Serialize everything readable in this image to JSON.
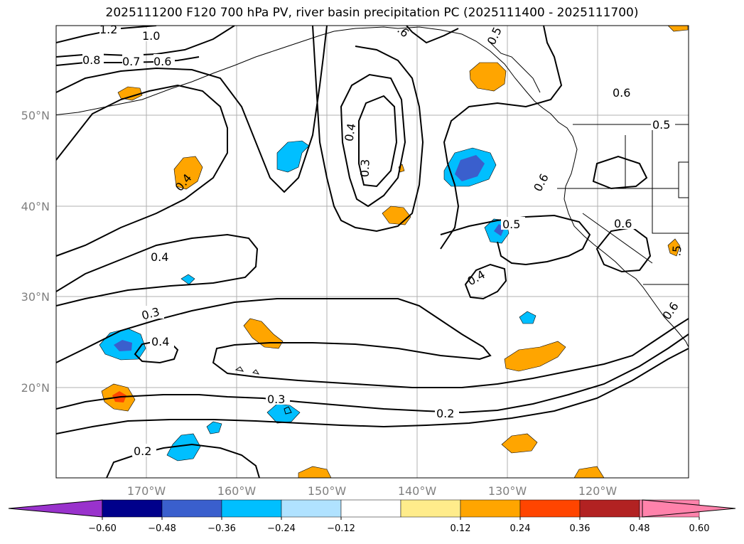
{
  "title": "2025111200 F120 700 hPa PV, river basin precipitation PC (2025111400 - 2025111700)",
  "lat_labels": [
    "50°N",
    "40°N",
    "30°N",
    "20°N"
  ],
  "lon_labels": [
    "170°W",
    "160°W",
    "150°W",
    "140°W",
    "130°W",
    "120°W"
  ],
  "contour_labels": [
    "1.2",
    "1.0",
    "0.8",
    "0.7",
    "0.6",
    "0.6",
    "0.5",
    "0.5",
    "0.6",
    "0.6",
    "0.5",
    "0.4",
    "0.3",
    "0.4",
    "0.4",
    "0.4",
    "0.3",
    "0.4",
    "0.3",
    "0.2",
    "0.2",
    "0.6",
    ".5",
    ".6"
  ],
  "colorbar": {
    "ticks": [
      "−0.60",
      "−0.48",
      "−0.36",
      "−0.24",
      "−0.12",
      "0.12",
      "0.24",
      "0.36",
      "0.48",
      "0.60"
    ],
    "colors": {
      "under": "#9932cc",
      "bins": [
        "#00008b",
        "#3a5fcd",
        "#00bfff",
        "#b0e2ff",
        "#ffffff",
        "#ffec8b",
        "#ffa500",
        "#ff4500",
        "#b22222",
        "#ff82ab"
      ],
      "over": "#ff82ab"
    }
  }
}
